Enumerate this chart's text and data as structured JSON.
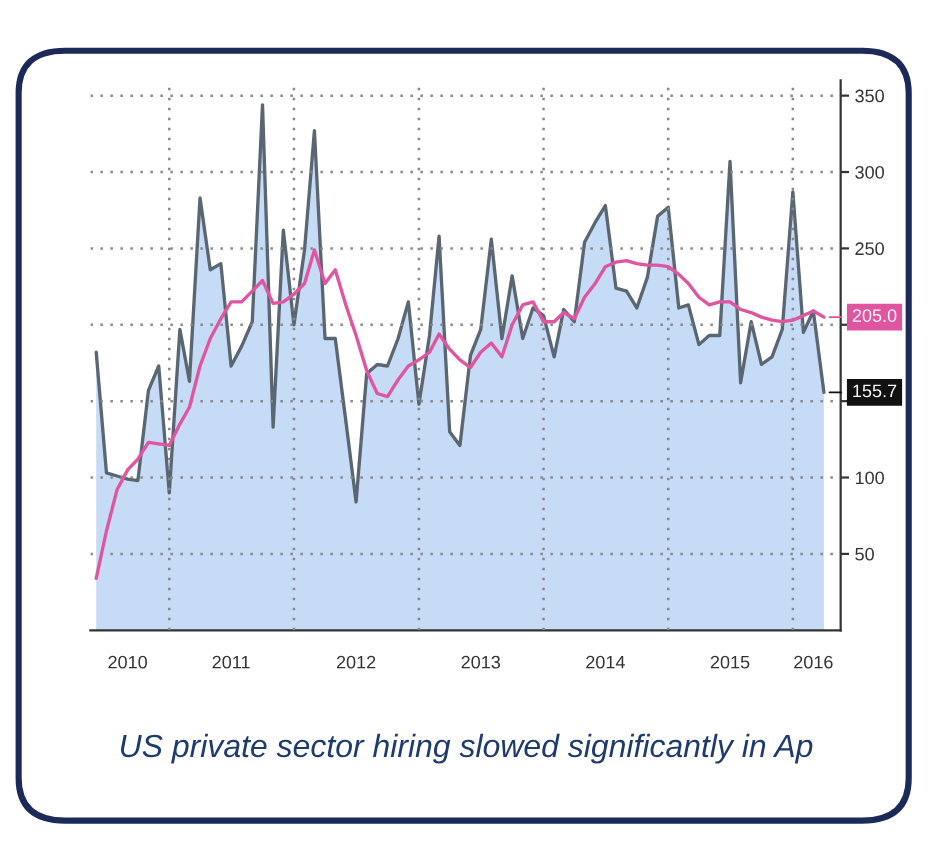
{
  "chart_data": {
    "type": "area",
    "x": [
      "2010-06",
      "2010-07",
      "2010-08",
      "2010-09",
      "2010-10",
      "2010-11",
      "2010-12",
      "2011-01",
      "2011-02",
      "2011-03",
      "2011-04",
      "2011-05",
      "2011-06",
      "2011-07",
      "2011-08",
      "2011-09",
      "2011-10",
      "2011-11",
      "2011-12",
      "2012-01",
      "2012-02",
      "2012-03",
      "2012-04",
      "2012-05",
      "2012-06",
      "2012-07",
      "2012-08",
      "2012-09",
      "2012-10",
      "2012-11",
      "2012-12",
      "2013-01",
      "2013-02",
      "2013-03",
      "2013-04",
      "2013-05",
      "2013-06",
      "2013-07",
      "2013-08",
      "2013-09",
      "2013-10",
      "2013-11",
      "2013-12",
      "2014-01",
      "2014-02",
      "2014-03",
      "2014-04",
      "2014-05",
      "2014-06",
      "2014-07",
      "2014-08",
      "2014-09",
      "2014-10",
      "2014-11",
      "2014-12",
      "2015-01",
      "2015-02",
      "2015-03",
      "2015-04",
      "2015-05",
      "2015-06",
      "2015-07",
      "2015-08",
      "2015-09",
      "2015-10",
      "2015-11",
      "2015-12",
      "2016-01",
      "2016-02",
      "2016-03",
      "2016-04"
    ],
    "series": [
      {
        "color": "#c6dcf6",
        "values": [
          182,
          103,
          101,
          99,
          98,
          157,
          173,
          90,
          197,
          163,
          283,
          236,
          240,
          173,
          186,
          202,
          344,
          133,
          262,
          200,
          249,
          327,
          191,
          191,
          137,
          84,
          168,
          174,
          173,
          191,
          215,
          148,
          193,
          258,
          130,
          121,
          180,
          197,
          256,
          191,
          232,
          191,
          211,
          206,
          179,
          210,
          202,
          254,
          267,
          278,
          224,
          222,
          211,
          231,
          271,
          277,
          211,
          213,
          187,
          193,
          193,
          307,
          162,
          202,
          174,
          179,
          197,
          287,
          195,
          209,
          155.7
        ]
      },
      {
        "type": "line",
        "color": "#e0559f",
        "values": [
          34,
          65,
          92,
          105,
          112,
          123,
          122,
          121,
          135,
          146,
          173,
          191,
          204,
          215,
          215,
          222,
          229,
          214,
          215,
          220,
          227,
          249,
          227,
          236,
          213,
          193,
          170,
          155,
          153,
          164,
          173,
          177,
          182,
          194,
          184,
          177,
          172,
          182,
          188,
          179,
          200,
          213,
          215,
          202,
          202,
          208,
          204,
          218,
          227,
          238,
          241,
          242,
          240,
          239,
          239,
          238,
          233,
          227,
          218,
          213,
          215,
          215,
          210,
          208,
          205,
          203,
          202,
          203,
          206,
          209,
          205.0
        ]
      }
    ],
    "xlim": [
      "2010-05-15",
      "2016-05-20"
    ],
    "xticks": [
      {
        "value": "2011-01",
        "label": null
      },
      {
        "value": "2012-01",
        "label": null
      },
      {
        "value": "2013-01",
        "label": null
      },
      {
        "value": "2014-01",
        "label": null
      },
      {
        "value": "2015-01",
        "label": null
      },
      {
        "value": "2016-01",
        "label": null
      },
      {
        "value": "2010-09",
        "label": "2010"
      },
      {
        "value": "2011-07",
        "label": "2011"
      },
      {
        "value": "2012-07",
        "label": "2012"
      },
      {
        "value": "2013-07",
        "label": "2013"
      },
      {
        "value": "2014-07",
        "label": "2014"
      },
      {
        "value": "2015-07",
        "label": "2015"
      },
      {
        "value": "2016-03",
        "label": "2016"
      }
    ],
    "ylim": [
      0,
      360
    ],
    "yticks": [
      50,
      100,
      {
        "value": 150,
        "label": null
      },
      {
        "value": 200,
        "label": null
      },
      250,
      300,
      350
    ],
    "grid": true,
    "legend": false,
    "annotations": [
      {
        "text": "205.0",
        "x": "2016-04",
        "y": 205.0
      },
      {
        "text": "155.7",
        "x": "2016-04",
        "y": 155.7
      },
      "US private sector hiring slowed significantly in Ap"
    ]
  }
}
